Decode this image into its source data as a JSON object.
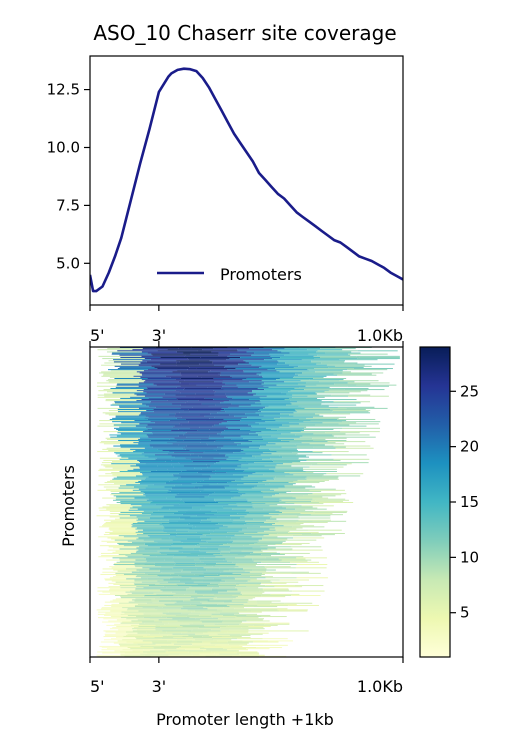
{
  "chart_data": [
    {
      "type": "line",
      "title": "ASO_10 Chaserr site coverage",
      "xlabel": "",
      "ylabel": "",
      "xlim": [
        0,
        1000
      ],
      "ylim": [
        3.2,
        13.95
      ],
      "x_ticks": [
        {
          "value": 0,
          "label": "5'"
        },
        {
          "value": 220,
          "label": "3'"
        },
        {
          "value": 1000,
          "label": "1.0Kb"
        }
      ],
      "y_ticks": [
        {
          "value": 5.0,
          "label": "5.0"
        },
        {
          "value": 7.5,
          "label": "7.5"
        },
        {
          "value": 10.0,
          "label": "10.0"
        },
        {
          "value": 12.5,
          "label": "12.5"
        }
      ],
      "legend": {
        "placement": "lower-center",
        "entries": [
          "Promoters"
        ]
      },
      "series": [
        {
          "name": "Promoters",
          "color": "#1a1c8a",
          "x": [
            0,
            10,
            20,
            40,
            60,
            80,
            100,
            130,
            160,
            190,
            220,
            250,
            260,
            280,
            300,
            320,
            340,
            360,
            380,
            400,
            420,
            440,
            460,
            480,
            500,
            520,
            540,
            560,
            580,
            600,
            620,
            640,
            660,
            680,
            700,
            720,
            740,
            760,
            780,
            800,
            820,
            840,
            860,
            880,
            900,
            920,
            940,
            960,
            980,
            1000
          ],
          "y": [
            4.5,
            3.8,
            3.8,
            4.0,
            4.6,
            5.3,
            6.1,
            7.7,
            9.3,
            10.8,
            12.4,
            13.05,
            13.2,
            13.35,
            13.4,
            13.38,
            13.3,
            13.0,
            12.6,
            12.1,
            11.6,
            11.1,
            10.6,
            10.2,
            9.8,
            9.4,
            8.9,
            8.6,
            8.3,
            8.0,
            7.8,
            7.5,
            7.2,
            7.0,
            6.8,
            6.6,
            6.4,
            6.2,
            6.0,
            5.9,
            5.7,
            5.5,
            5.3,
            5.2,
            5.1,
            4.95,
            4.8,
            4.6,
            4.45,
            4.3
          ]
        }
      ]
    },
    {
      "type": "heatmap",
      "title": "",
      "xlabel": "Promoter length +1kb",
      "ylabel": "Promoters",
      "xlim": [
        0,
        1000
      ],
      "x_ticks": [
        {
          "value": 0,
          "label": "5'"
        },
        {
          "value": 220,
          "label": "3'"
        },
        {
          "value": 1000,
          "label": "1.0Kb"
        }
      ],
      "colormap": "YlGnBu",
      "colorbar": {
        "range": [
          1,
          29
        ],
        "ticks": [
          {
            "value": 5,
            "label": "5"
          },
          {
            "value": 10,
            "label": "10"
          },
          {
            "value": 15,
            "label": "15"
          },
          {
            "value": 20,
            "label": "20"
          },
          {
            "value": 25,
            "label": "25"
          }
        ]
      },
      "row_count": 280,
      "sorted_by": "mean coverage, descending"
    }
  ]
}
